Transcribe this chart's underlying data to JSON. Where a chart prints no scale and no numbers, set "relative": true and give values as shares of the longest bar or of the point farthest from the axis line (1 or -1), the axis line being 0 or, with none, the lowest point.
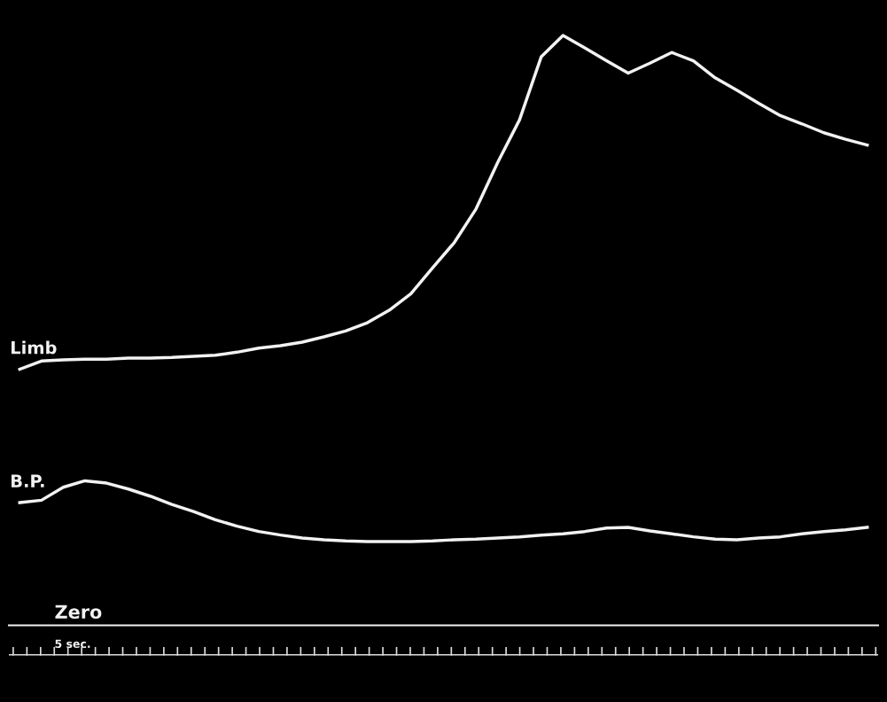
{
  "chart_data": {
    "type": "line",
    "relative": true,
    "categories": [
      null,
      null,
      null,
      null,
      null,
      null,
      null,
      null,
      null,
      null,
      null,
      null,
      null,
      null,
      null,
      null,
      null,
      null,
      null,
      null,
      null,
      null,
      null,
      null,
      null,
      null,
      null,
      null,
      null,
      null,
      null,
      null,
      null,
      null,
      null,
      null,
      null,
      null,
      null,
      null
    ],
    "series": [
      {
        "name": "Limb",
        "color": "#f2f2f2",
        "values": [
          0.434,
          0.448,
          0.45,
          0.451,
          0.451,
          0.453,
          0.453,
          0.454,
          0.456,
          0.458,
          0.463,
          0.47,
          0.474,
          0.48,
          0.489,
          0.499,
          0.513,
          0.534,
          0.562,
          0.606,
          0.649,
          0.706,
          0.785,
          0.857,
          0.964,
          1.0,
          0.979,
          0.957,
          0.936,
          0.953,
          0.971,
          0.957,
          0.928,
          0.907,
          0.885,
          0.864,
          0.85,
          0.835,
          0.824,
          0.814
        ]
      },
      {
        "name": "B.P.",
        "color": "#f2f2f2",
        "values": [
          0.208,
          0.212,
          0.234,
          0.245,
          0.241,
          0.231,
          0.219,
          0.205,
          0.193,
          0.179,
          0.168,
          0.159,
          0.153,
          0.148,
          0.145,
          0.143,
          0.142,
          0.142,
          0.142,
          0.143,
          0.145,
          0.146,
          0.148,
          0.15,
          0.153,
          0.155,
          0.159,
          0.165,
          0.166,
          0.16,
          0.155,
          0.15,
          0.146,
          0.145,
          0.148,
          0.15,
          0.155,
          0.159,
          0.162,
          0.166
        ]
      }
    ],
    "annotations": [
      "Zero",
      "5 sec."
    ],
    "legend": false
  }
}
